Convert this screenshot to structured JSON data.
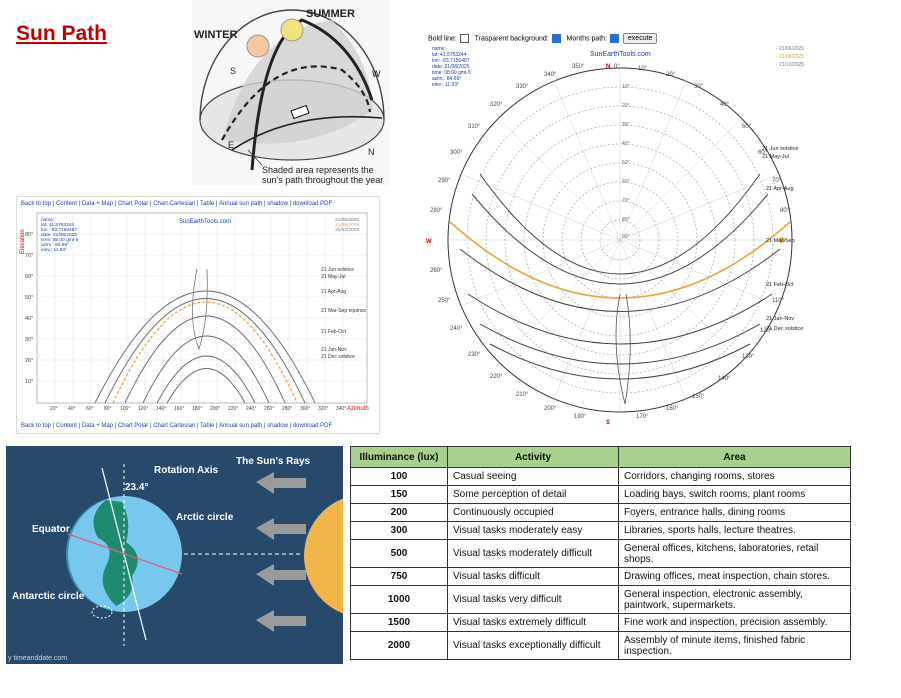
{
  "title": "Sun Path",
  "dome": {
    "winter": "WINTER",
    "summer": "SUMMER",
    "s": "S",
    "w": "W",
    "e": "E",
    "n": "N",
    "caption": "Shaded area represents the sun's path throughout the year"
  },
  "cartesian": {
    "nav_top": [
      "Back to top",
      "Content",
      "Data + Map",
      "Chart Polar",
      "Chart Cartesian",
      "Table",
      "Annual sun path",
      "shadow",
      "download PDF"
    ],
    "brand": "SunEarthTools.com",
    "info": [
      "name:",
      "lat: 41.5753244",
      "lon: -83.7156487",
      "date: 21/08/2025",
      "time: 08:00 gmt-5",
      "azim.: 84.66°",
      "elev.: 11.93°"
    ],
    "legend_dates": [
      "21/06/2025",
      "21/08/2025",
      "21/12/2025"
    ],
    "series_labels": [
      "21 Jun  solstice",
      "21 May-Jul",
      "21 Apr-Aug",
      "21 Mar-Sep equinox",
      "21 Feb-Oct",
      "21 Jan-Nov",
      "21 Dec  solstice"
    ],
    "ylabel": "Elevation",
    "xlabel": "Azimuth",
    "y_ticks": [
      "80°",
      "70°",
      "60°",
      "50°",
      "40°",
      "30°",
      "20°",
      "10°"
    ],
    "x_ticks": [
      "20°",
      "40°",
      "60°",
      "80°",
      "100°",
      "120°",
      "140°",
      "160°",
      "180°",
      "200°",
      "220°",
      "240°",
      "260°",
      "280°",
      "300°",
      "320°",
      "340°"
    ],
    "nav_bottom": [
      "Back to top",
      "Content",
      "Data + Map",
      "Chart Polar",
      "Chart Cartesian",
      "Table",
      "Annual sun path",
      "shadow",
      "download PDF"
    ]
  },
  "polar": {
    "bold_line": "Bold line:",
    "transparent": "Trasparent background:",
    "months_path": "Months path:",
    "execute": "execute",
    "brand": "SunEarthTools.com",
    "info": [
      "name:",
      "lat: 41.5753244",
      "lon: -83.7156487",
      "date: 21/08/2025",
      "time: 08:00 gmt-5",
      "azim.: 84.66°",
      "elev.: 11.93°"
    ],
    "legend_dates": [
      "- 21/06/2025",
      "- 21/08/2025",
      "- 21/12/2025"
    ],
    "azimuth_labels": [
      "350°",
      "0°",
      "10°",
      "20°",
      "30°",
      "40°",
      "50°",
      "60°",
      "70°",
      "80°",
      "110°",
      "120°",
      "130°",
      "140°",
      "150°",
      "160°",
      "170°",
      "190°",
      "200°",
      "210°",
      "220°",
      "230°",
      "240°",
      "250°",
      "260°",
      "280°",
      "290°",
      "300°",
      "310°",
      "320°",
      "330°",
      "340°"
    ],
    "compass": {
      "n": "N",
      "s": "S",
      "w": "W"
    },
    "elev_labels": [
      "10°",
      "20°",
      "30°",
      "40°",
      "50°",
      "60°",
      "70°",
      "80°",
      "90°"
    ],
    "series_labels": [
      "21 Jun  solstice",
      "21 May-Jul",
      "21 Apr-Aug",
      "21 Mar-Sep",
      "21 Feb-Oct",
      "21 Jan-Nov",
      "21 Dec  solstice"
    ]
  },
  "earth": {
    "rotation_axis": "Rotation Axis",
    "angle": "23.4°",
    "rays": "The Sun's Rays",
    "arctic": "Arctic circle",
    "equator": "Equator",
    "antarctic": "Antarctic circle",
    "credit": "y timeanddate.com"
  },
  "lux_table": {
    "headers": [
      "Illuminance (lux)",
      "Activity",
      "Area"
    ],
    "rows": [
      [
        "100",
        "Casual seeing",
        "Corridors, changing rooms, stores"
      ],
      [
        "150",
        "Some perception of detail",
        "Loading bays, switch rooms, plant rooms"
      ],
      [
        "200",
        "Continuously occupied",
        "Foyers, entrance halls, dining rooms"
      ],
      [
        "300",
        "Visual tasks moderately easy",
        "Libraries, sports halls, lecture theatres."
      ],
      [
        "500",
        "Visual tasks moderately difficult",
        "General offices, kitchens, laboratories, retail shops."
      ],
      [
        "750",
        "Visual tasks difficult",
        "Drawing offices, meat inspection, chain stores."
      ],
      [
        "1000",
        "Visual tasks very difficult",
        "General inspection, electronic assembly, paintwork, supermarkets."
      ],
      [
        "1500",
        "Visual tasks extremely difficult",
        "Fine work and inspection, precision assembly."
      ],
      [
        "2000",
        "Visual tasks exceptionally difficult",
        "Assembly of minute items, finished fabric inspection."
      ]
    ]
  },
  "colors": {
    "title": "#c00000",
    "table_header": "#a9d18e",
    "aug_path": "#e8a33a",
    "sun": "#f5b841"
  }
}
